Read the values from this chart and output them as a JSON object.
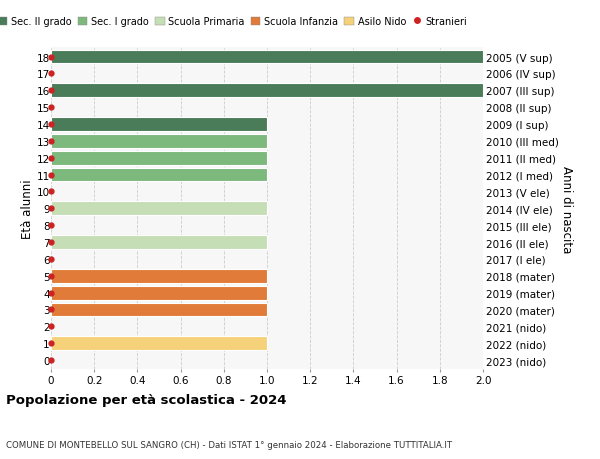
{
  "ages": [
    18,
    17,
    16,
    15,
    14,
    13,
    12,
    11,
    10,
    9,
    8,
    7,
    6,
    5,
    4,
    3,
    2,
    1,
    0
  ],
  "years": [
    "2005 (V sup)",
    "2006 (IV sup)",
    "2007 (III sup)",
    "2008 (II sup)",
    "2009 (I sup)",
    "2010 (III med)",
    "2011 (II med)",
    "2012 (I med)",
    "2013 (V ele)",
    "2014 (IV ele)",
    "2015 (III ele)",
    "2016 (II ele)",
    "2017 (I ele)",
    "2018 (mater)",
    "2019 (mater)",
    "2020 (mater)",
    "2021 (nido)",
    "2022 (nido)",
    "2023 (nido)"
  ],
  "values": [
    2.0,
    0,
    2.0,
    0,
    1.0,
    1.0,
    1.0,
    1.0,
    0,
    1.0,
    0,
    1.0,
    0,
    1.0,
    1.0,
    1.0,
    0,
    1.0,
    0
  ],
  "colors": [
    "#4a7c59",
    "#ffffff",
    "#4a7c59",
    "#ffffff",
    "#4a7c59",
    "#7db87d",
    "#7db87d",
    "#7db87d",
    "#ffffff",
    "#c5deb5",
    "#ffffff",
    "#c5deb5",
    "#ffffff",
    "#e07b39",
    "#e07b39",
    "#e07b39",
    "#ffffff",
    "#f5d27a",
    "#ffffff"
  ],
  "stranieri_dots": [
    18,
    17,
    16,
    15,
    14,
    13,
    12,
    11,
    10,
    9,
    8,
    7,
    6,
    5,
    4,
    3,
    2,
    1,
    0
  ],
  "legend_labels": [
    "Sec. II grado",
    "Sec. I grado",
    "Scuola Primaria",
    "Scuola Infanzia",
    "Asilo Nido",
    "Stranieri"
  ],
  "legend_colors": [
    "#4a7c59",
    "#7db87d",
    "#c5deb5",
    "#e07b39",
    "#f5d27a",
    "#cc2222"
  ],
  "ylabel_left": "Età alunni",
  "ylabel_right": "Anni di nascita",
  "title": "Popolazione per età scolastica - 2024",
  "subtitle": "COMUNE DI MONTEBELLO SUL SANGRO (CH) - Dati ISTAT 1° gennaio 2024 - Elaborazione TUTTITALIA.IT",
  "xlim": [
    0,
    2.0
  ],
  "bg_color": "#ffffff",
  "plot_bg": "#f7f7f7",
  "grid_color": "#cccccc",
  "bar_height": 0.82
}
